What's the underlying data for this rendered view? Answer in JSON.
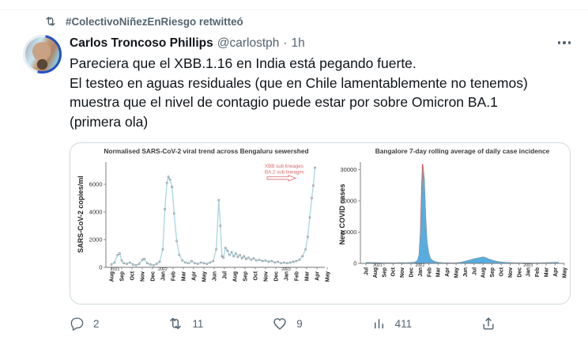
{
  "retweet_banner": {
    "text": "#ColectivoNiñezEnRiesgo retwitteó"
  },
  "author": {
    "name": "Carlos Troncoso Phillips",
    "handle": "@carlostph",
    "separator": "·",
    "time": "1h"
  },
  "tweet": {
    "text": "Pareciera que el XBB.1.16 en India está pegando fuerte.\nEl testeo en aguas residuales (que en Chile lamentablemente no tenemos)\nmuestra que el nivel de contagio puede estar por sobre Omicron BA.1\n(primera ola)"
  },
  "actions": {
    "reply_count": "2",
    "retweet_count": "11",
    "like_count": "9",
    "view_count": "411"
  },
  "colors": {
    "ui_gray": "#536471",
    "text_black": "#0f1419",
    "card_border": "#cfd9de"
  },
  "chart_data": [
    {
      "type": "line",
      "title": "Normalised SARS-CoV-2 viral trend across Bengaluru sewershed",
      "ylabel": "SARS-CoV-2 copies/ml",
      "yticks": [
        0,
        2000,
        4000,
        6000
      ],
      "ylim": [
        0,
        7600
      ],
      "xtick_labels": [
        "Aug",
        "Sep",
        "Oct",
        "Nov",
        "Dec",
        "Jan",
        "Feb",
        "Mar",
        "Apr",
        "May",
        "Jun",
        "Jul",
        "Aug",
        "Sep",
        "Oct",
        "Nov",
        "Dec",
        "Jan",
        "Feb",
        "Mar",
        "Apr",
        "May"
      ],
      "year_labels": [
        {
          "label": "2021",
          "m": 0.35
        },
        {
          "label": "2022",
          "m": 5.0
        },
        {
          "label": "2023",
          "m": 17.0
        }
      ],
      "legend": {
        "items": [
          "XBB sub lineages",
          "BA.2 sub lineages"
        ],
        "color": "#d96a6a"
      },
      "line_color": "#aed8e2",
      "marker_stroke": "#64727a",
      "points": [
        [
          0,
          200
        ],
        [
          0.3,
          350
        ],
        [
          0.6,
          900
        ],
        [
          0.8,
          1000
        ],
        [
          1,
          500
        ],
        [
          1.2,
          300
        ],
        [
          1.5,
          250
        ],
        [
          1.8,
          350
        ],
        [
          2.1,
          200
        ],
        [
          2.4,
          150
        ],
        [
          2.7,
          250
        ],
        [
          3,
          550
        ],
        [
          3.2,
          600
        ],
        [
          3.5,
          300
        ],
        [
          3.8,
          200
        ],
        [
          4.1,
          150
        ],
        [
          4.4,
          250
        ],
        [
          4.7,
          400
        ],
        [
          5,
          1300
        ],
        [
          5.2,
          4200
        ],
        [
          5.4,
          6100
        ],
        [
          5.55,
          6550
        ],
        [
          5.7,
          6350
        ],
        [
          5.9,
          5800
        ],
        [
          6.1,
          3900
        ],
        [
          6.35,
          1900
        ],
        [
          6.6,
          900
        ],
        [
          6.9,
          500
        ],
        [
          7.2,
          350
        ],
        [
          7.5,
          300
        ],
        [
          7.8,
          450
        ],
        [
          8.1,
          300
        ],
        [
          8.4,
          250
        ],
        [
          8.7,
          350
        ],
        [
          9,
          300
        ],
        [
          9.3,
          250
        ],
        [
          9.6,
          350
        ],
        [
          9.9,
          450
        ],
        [
          10.2,
          1300
        ],
        [
          10.45,
          4850
        ],
        [
          10.6,
          3000
        ],
        [
          10.75,
          800
        ],
        [
          10.9,
          700
        ],
        [
          11.1,
          1400
        ],
        [
          11.3,
          1200
        ],
        [
          11.5,
          900
        ],
        [
          11.7,
          1100
        ],
        [
          11.9,
          800
        ],
        [
          12.1,
          1000
        ],
        [
          12.3,
          750
        ],
        [
          12.5,
          900
        ],
        [
          12.7,
          650
        ],
        [
          12.9,
          800
        ],
        [
          13.1,
          600
        ],
        [
          13.35,
          700
        ],
        [
          13.6,
          550
        ],
        [
          13.85,
          650
        ],
        [
          14.1,
          500
        ],
        [
          14.4,
          550
        ],
        [
          14.7,
          450
        ],
        [
          15,
          500
        ],
        [
          15.3,
          400
        ],
        [
          15.6,
          450
        ],
        [
          15.9,
          350
        ],
        [
          16.2,
          400
        ],
        [
          16.5,
          300
        ],
        [
          16.8,
          350
        ],
        [
          17.1,
          300
        ],
        [
          17.4,
          350
        ],
        [
          17.7,
          400
        ],
        [
          18,
          450
        ],
        [
          18.3,
          550
        ],
        [
          18.6,
          800
        ],
        [
          18.9,
          1300
        ],
        [
          19.1,
          2200
        ],
        [
          19.3,
          3600
        ],
        [
          19.5,
          5000
        ],
        [
          19.65,
          5900
        ],
        [
          19.8,
          7200
        ]
      ]
    },
    {
      "type": "area",
      "title": "Bangalore 7-day rolling average of daily case incidence",
      "ylabel": "New COVID cases",
      "yticks": [
        0,
        10000,
        20000,
        30000
      ],
      "ylim": [
        0,
        32500
      ],
      "xtick_labels": [
        "Jul",
        "Aug",
        "Sep",
        "Oct",
        "Nov",
        "Dec",
        "Jan",
        "Feb",
        "Mar",
        "Apr",
        "May",
        "Jun",
        "Jul",
        "Aug",
        "Sep",
        "Oct",
        "Nov",
        "Dec",
        "Jan",
        "Feb",
        "Mar",
        "Apr",
        "May"
      ],
      "year_labels": [
        {
          "label": "2021",
          "m": 1.3
        },
        {
          "label": "2022",
          "m": 6.0
        },
        {
          "label": "2023",
          "m": 18.0
        }
      ],
      "fill_color": "#57ade0",
      "outline_color": "#8d9aa2",
      "red_line_color": "#cc4b4b",
      "points": [
        [
          0,
          350
        ],
        [
          0.5,
          300
        ],
        [
          1,
          280
        ],
        [
          1.5,
          250
        ],
        [
          2,
          220
        ],
        [
          2.5,
          200
        ],
        [
          3,
          200
        ],
        [
          3.5,
          220
        ],
        [
          4,
          250
        ],
        [
          4.5,
          260
        ],
        [
          5,
          300
        ],
        [
          5.4,
          400
        ],
        [
          5.7,
          900
        ],
        [
          5.9,
          3000
        ],
        [
          6.05,
          9000
        ],
        [
          6.2,
          21000
        ],
        [
          6.35,
          31000
        ],
        [
          6.5,
          27000
        ],
        [
          6.65,
          15000
        ],
        [
          6.8,
          7000
        ],
        [
          7,
          3200
        ],
        [
          7.2,
          1500
        ],
        [
          7.5,
          800
        ],
        [
          7.8,
          500
        ],
        [
          8.1,
          350
        ],
        [
          8.5,
          250
        ],
        [
          9,
          200
        ],
        [
          9.5,
          180
        ],
        [
          10,
          200
        ],
        [
          10.5,
          350
        ],
        [
          11,
          700
        ],
        [
          11.5,
          1100
        ],
        [
          12,
          1500
        ],
        [
          12.5,
          1800
        ],
        [
          13,
          2100
        ],
        [
          13.3,
          1900
        ],
        [
          13.6,
          1500
        ],
        [
          14,
          1100
        ],
        [
          14.5,
          700
        ],
        [
          15,
          450
        ],
        [
          15.5,
          350
        ],
        [
          16,
          280
        ],
        [
          16.5,
          230
        ],
        [
          17,
          200
        ],
        [
          17.5,
          180
        ],
        [
          18,
          160
        ],
        [
          18.5,
          160
        ],
        [
          19,
          170
        ],
        [
          19.5,
          200
        ],
        [
          20,
          250
        ],
        [
          20.5,
          300
        ],
        [
          21,
          380
        ],
        [
          21.4,
          350
        ]
      ],
      "red_points": [
        [
          5.9,
          2800
        ],
        [
          6.05,
          10000
        ],
        [
          6.18,
          24000
        ],
        [
          6.28,
          31800
        ],
        [
          6.4,
          29000
        ],
        [
          6.55,
          20000
        ],
        [
          6.7,
          9000
        ],
        [
          6.85,
          3500
        ],
        [
          7.05,
          1500
        ]
      ]
    }
  ]
}
